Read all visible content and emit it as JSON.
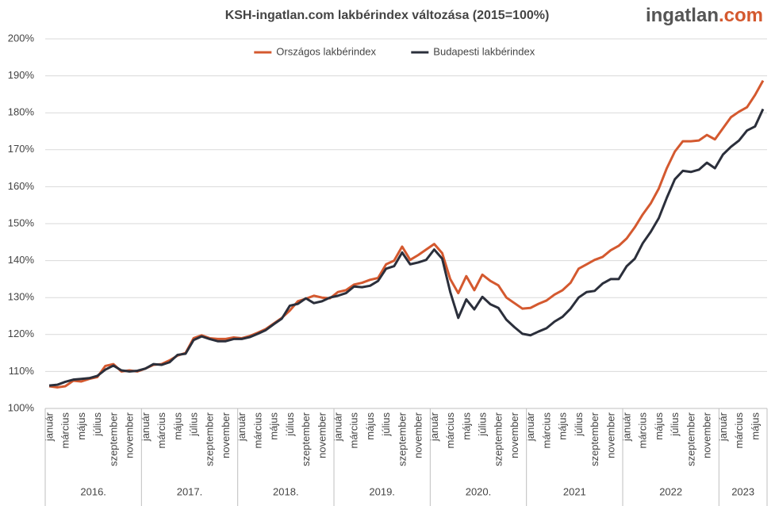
{
  "chart_data": {
    "type": "line",
    "title": "KSH-ingatlan.com lakbérindex változása (2015=100%)",
    "logo": {
      "name": "ingatlan",
      "suffix": ".com"
    },
    "categories": [
      "január",
      null,
      "március",
      null,
      "május",
      null,
      "július",
      null,
      "szeptember",
      null,
      "november",
      null,
      "január",
      null,
      "március",
      null,
      "május",
      null,
      "július",
      null,
      "szeptember",
      null,
      "november",
      null,
      "január",
      null,
      "március",
      null,
      "május",
      null,
      "július",
      null,
      "szeptember",
      null,
      "november",
      null,
      "január",
      null,
      "március",
      null,
      "május",
      null,
      "július",
      null,
      "szeptember",
      null,
      "november",
      null,
      "január",
      null,
      "március",
      null,
      "május",
      null,
      "július",
      null,
      "szeptember",
      null,
      "november",
      null,
      "január",
      null,
      "március",
      null,
      "május",
      null,
      "július",
      null,
      "szeptember",
      null,
      "november",
      null,
      "január",
      null,
      "március",
      null,
      "május",
      null,
      "július",
      null,
      "szeptember",
      null,
      "november",
      null,
      "január",
      null,
      "március",
      null,
      "május",
      null
    ],
    "year_labels": [
      "2016.",
      "2017.",
      "2018.",
      "2019.",
      "2020.",
      "2021",
      "2022",
      "2023"
    ],
    "series": [
      {
        "name": "Országos lakbérindex",
        "color": "#d4592f",
        "values": [
          106,
          105.7,
          106,
          107.5,
          107.3,
          108,
          108.5,
          111.5,
          112,
          110,
          110.3,
          110,
          110.8,
          111.8,
          112,
          113,
          114.3,
          115,
          119,
          119.8,
          119,
          118.8,
          118.8,
          119.2,
          119,
          119.6,
          120.5,
          121.5,
          123,
          124.5,
          126.5,
          129,
          129.7,
          130.5,
          130,
          129.8,
          131.5,
          132,
          133.5,
          134,
          134.8,
          135.3,
          139,
          140,
          143.8,
          140.2,
          141.5,
          143,
          144.5,
          142,
          135,
          131.2,
          135.8,
          132,
          136.2,
          134.5,
          133.3,
          130,
          128.5,
          127,
          127.2,
          128.3,
          129.2,
          130.8,
          132,
          134,
          137.8,
          139,
          140.2,
          141,
          142.8,
          144,
          146,
          149,
          152.5,
          155.5,
          159.5,
          165,
          169.5,
          172.3,
          172.3,
          172.5,
          174,
          172.8,
          175.8,
          178.8,
          180.3,
          181.5,
          184.8,
          188.7
        ]
      },
      {
        "name": "Budapesti lakbérindex",
        "color": "#2b2f3b",
        "values": [
          106.2,
          106.4,
          107.2,
          107.8,
          108,
          108.2,
          108.8,
          110.5,
          111.6,
          110.3,
          110,
          110.2,
          110.8,
          112,
          111.8,
          112.5,
          114.5,
          114.8,
          118.5,
          119.5,
          118.8,
          118.2,
          118.2,
          118.8,
          118.8,
          119.3,
          120.2,
          121.2,
          122.8,
          124.3,
          127.8,
          128.3,
          129.8,
          128.5,
          129,
          130,
          130.5,
          131.2,
          133,
          132.8,
          133.2,
          134.5,
          137.8,
          138.5,
          142.2,
          139,
          139.5,
          140.2,
          143,
          140.5,
          131.5,
          124.5,
          129.5,
          126.8,
          130.2,
          128.2,
          127.2,
          124,
          122,
          120.2,
          119.8,
          120.8,
          121.7,
          123.5,
          124.8,
          127,
          130,
          131.5,
          131.8,
          133.8,
          135,
          135,
          138.5,
          140.5,
          144.7,
          147.8,
          151.5,
          157,
          162,
          164.3,
          164,
          164.6,
          166.5,
          165,
          168.7,
          170.8,
          172.5,
          175.2,
          176.3,
          181
        ]
      }
    ],
    "ylim": [
      100,
      200
    ],
    "yticks": [
      {
        "value": 100,
        "label": "100%"
      },
      {
        "value": 110,
        "label": "110%"
      },
      {
        "value": 120,
        "label": "120%"
      },
      {
        "value": 130,
        "label": "130%"
      },
      {
        "value": 140,
        "label": "140%"
      },
      {
        "value": 150,
        "label": "150%"
      },
      {
        "value": 160,
        "label": "160%"
      },
      {
        "value": 170,
        "label": "170%"
      },
      {
        "value": 180,
        "label": "180%"
      },
      {
        "value": 190,
        "label": "190%"
      },
      {
        "value": 200,
        "label": "200%"
      }
    ],
    "grid": true,
    "legend": "top"
  }
}
